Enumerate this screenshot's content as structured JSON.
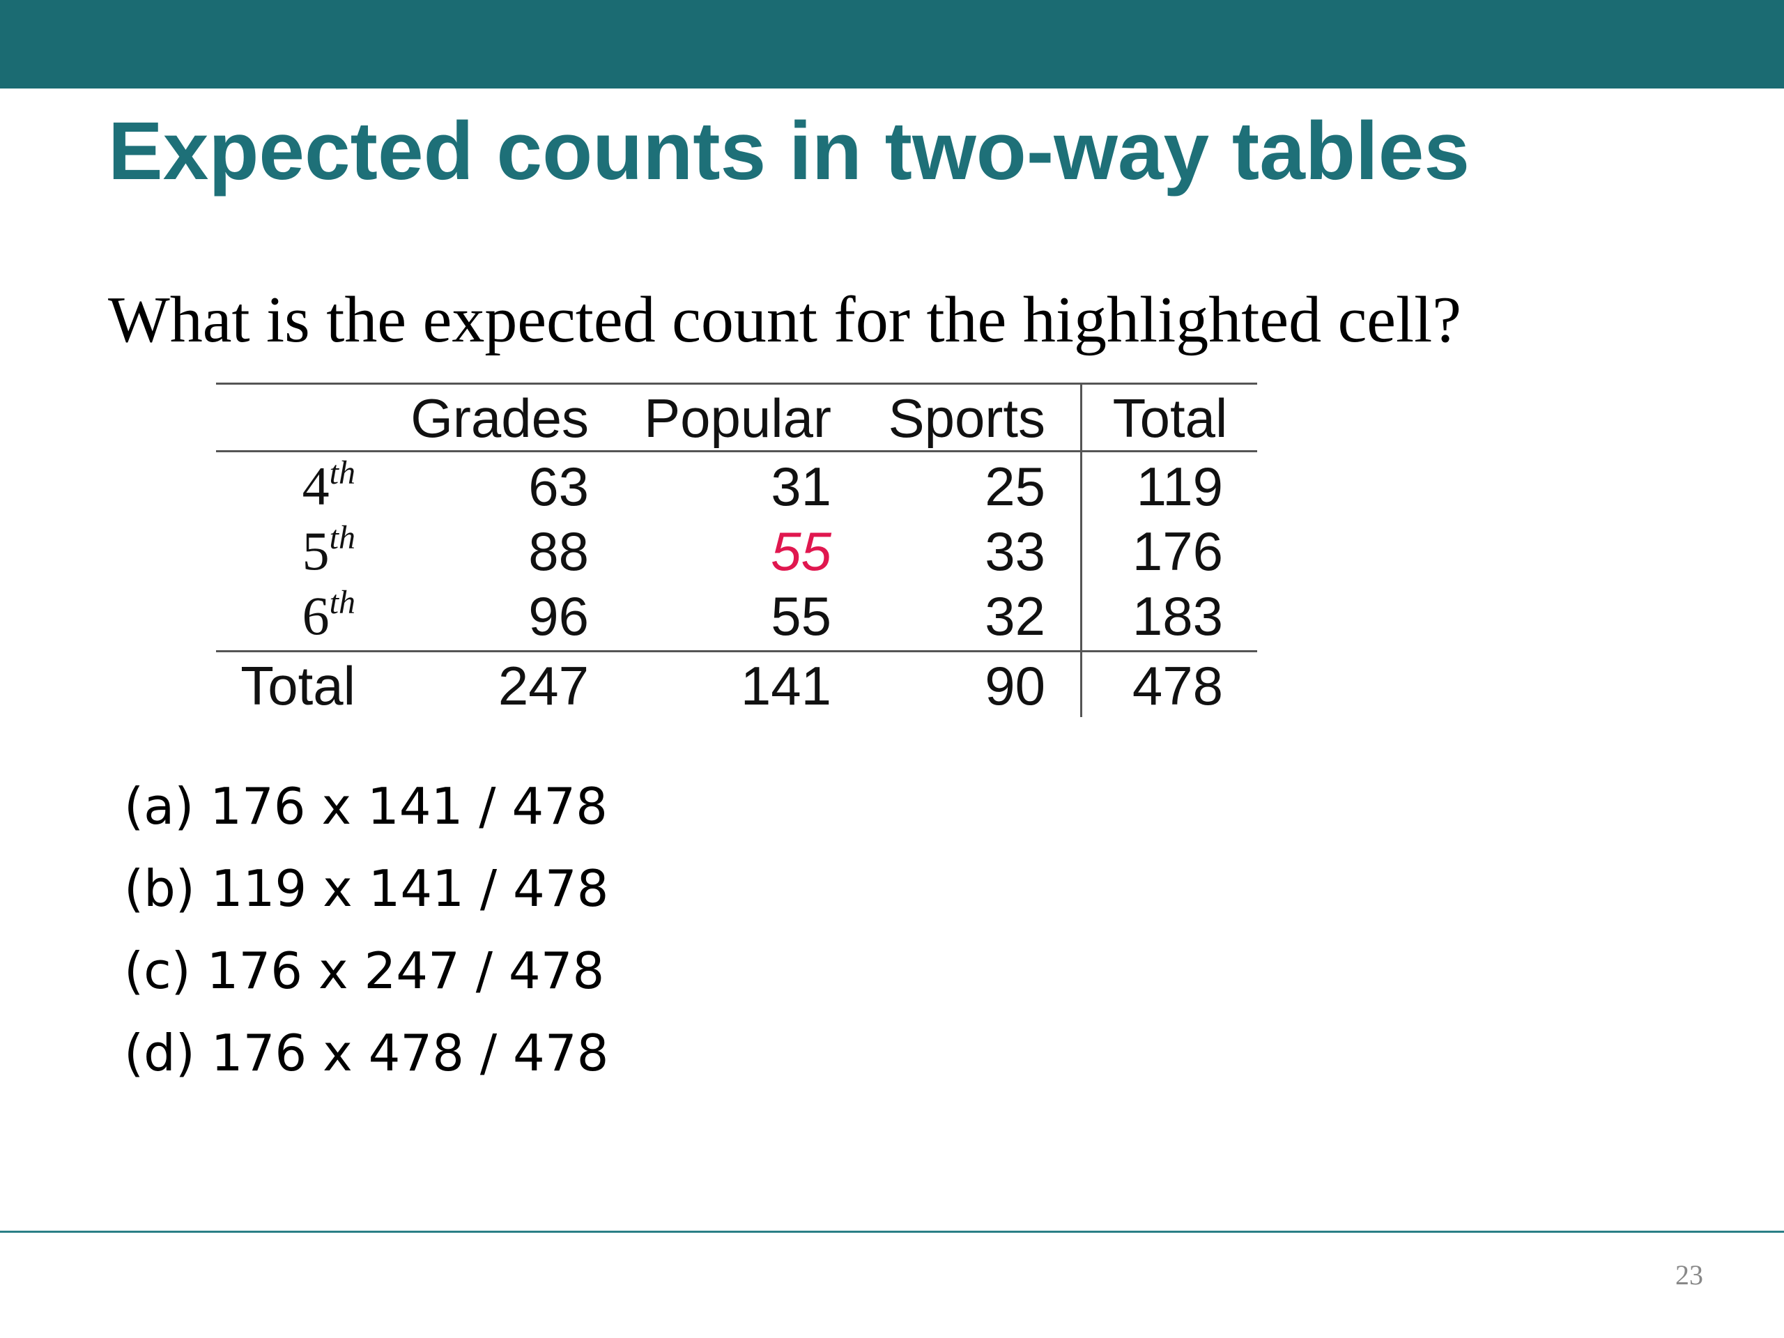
{
  "theme": {
    "band_color": "#1b6b72",
    "title_color": "#1e7078",
    "highlight_color": "#e0174f"
  },
  "slide": {
    "title": "Expected counts in two-way tables",
    "question": "What is the expected count for the highlighted cell?",
    "page_number": "23"
  },
  "table": {
    "headers": [
      "Grades",
      "Popular",
      "Sports",
      "Total"
    ],
    "rows": [
      {
        "label": "4",
        "label_sup": "th",
        "values": [
          "63",
          "31",
          "25",
          "119"
        ]
      },
      {
        "label": "5",
        "label_sup": "th",
        "values": [
          "88",
          "55",
          "33",
          "176"
        ]
      },
      {
        "label": "6",
        "label_sup": "th",
        "values": [
          "96",
          "55",
          "32",
          "183"
        ]
      }
    ],
    "total_row": {
      "label": "Total",
      "values": [
        "247",
        "141",
        "90",
        "478"
      ]
    },
    "highlighted_cell": {
      "row": 1,
      "col": 1,
      "value": "55"
    }
  },
  "options": [
    "(a) 176 x 141 / 478",
    "(b) 119 x 141 / 478",
    "(c) 176 x 247 / 478",
    "(d) 176 x 478 / 478"
  ]
}
